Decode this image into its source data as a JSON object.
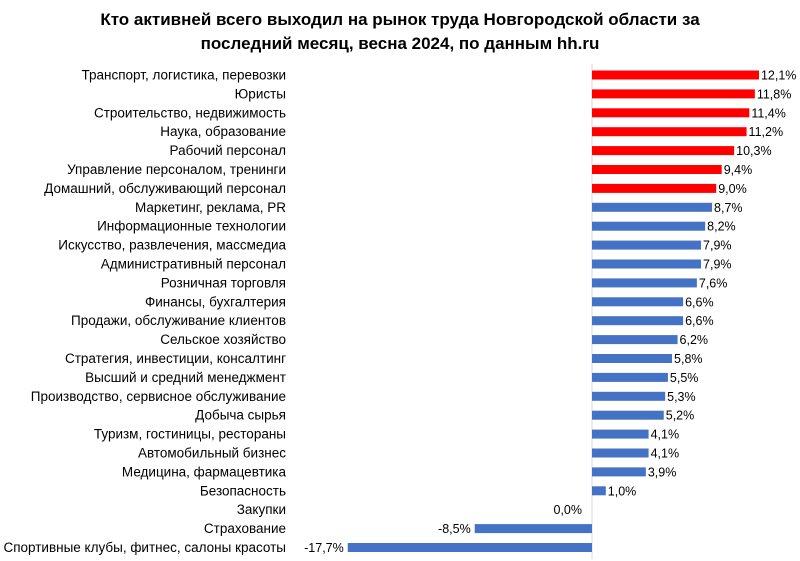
{
  "chart_data": {
    "type": "bar",
    "orientation": "horizontal",
    "title_lines": [
      "Кто активней всего выходил на рынок труда Новгородской области за",
      "последний месяц, весна 2024, по данным hh.ru"
    ],
    "categories": [
      "Транспорт, логистика, перевозки",
      "Юристы",
      "Строительство, недвижимость",
      "Наука, образование",
      "Рабочий персонал",
      "Управление персоналом, тренинги",
      "Домашний, обслуживающий персонал",
      "Маркетинг, реклама, PR",
      "Информационные технологии",
      "Искусство, развлечения, массмедиа",
      "Административный персонал",
      "Розничная торговля",
      "Финансы, бухгалтерия",
      "Продажи, обслуживание клиентов",
      "Сельское хозяйство",
      "Стратегия, инвестиции, консалтинг",
      "Высший и средний менеджмент",
      "Производство, сервисное обслуживание",
      "Добыча сырья",
      "Туризм, гостиницы, рестораны",
      "Автомобильный бизнес",
      "Медицина, фармацевтика",
      "Безопасность",
      "Закупки",
      "Страхование",
      "Спортивные клубы, фитнес, салоны красоты"
    ],
    "values": [
      12.1,
      11.8,
      11.4,
      11.2,
      10.3,
      9.4,
      9.0,
      8.7,
      8.2,
      7.9,
      7.9,
      7.6,
      6.6,
      6.6,
      6.2,
      5.8,
      5.5,
      5.3,
      5.2,
      4.1,
      4.1,
      3.9,
      1.0,
      0.0,
      -8.5,
      -17.7
    ],
    "labels": [
      "12,1%",
      "11,8%",
      "11,4%",
      "11,2%",
      "10,3%",
      "9,4%",
      "9,0%",
      "8,7%",
      "8,2%",
      "7,9%",
      "7,9%",
      "7,6%",
      "6,6%",
      "6,6%",
      "6,2%",
      "5,8%",
      "5,5%",
      "5,3%",
      "5,2%",
      "4,1%",
      "4,1%",
      "3,9%",
      "1,0%",
      "0,0%",
      "-8,5%",
      "-17,7%"
    ],
    "highlight_count": 7,
    "colors": {
      "highlight": "#ff0000",
      "default": "#4472c4",
      "axis": "#d9d9d9"
    },
    "value_unit": "%",
    "grid": false,
    "legend": "none"
  }
}
